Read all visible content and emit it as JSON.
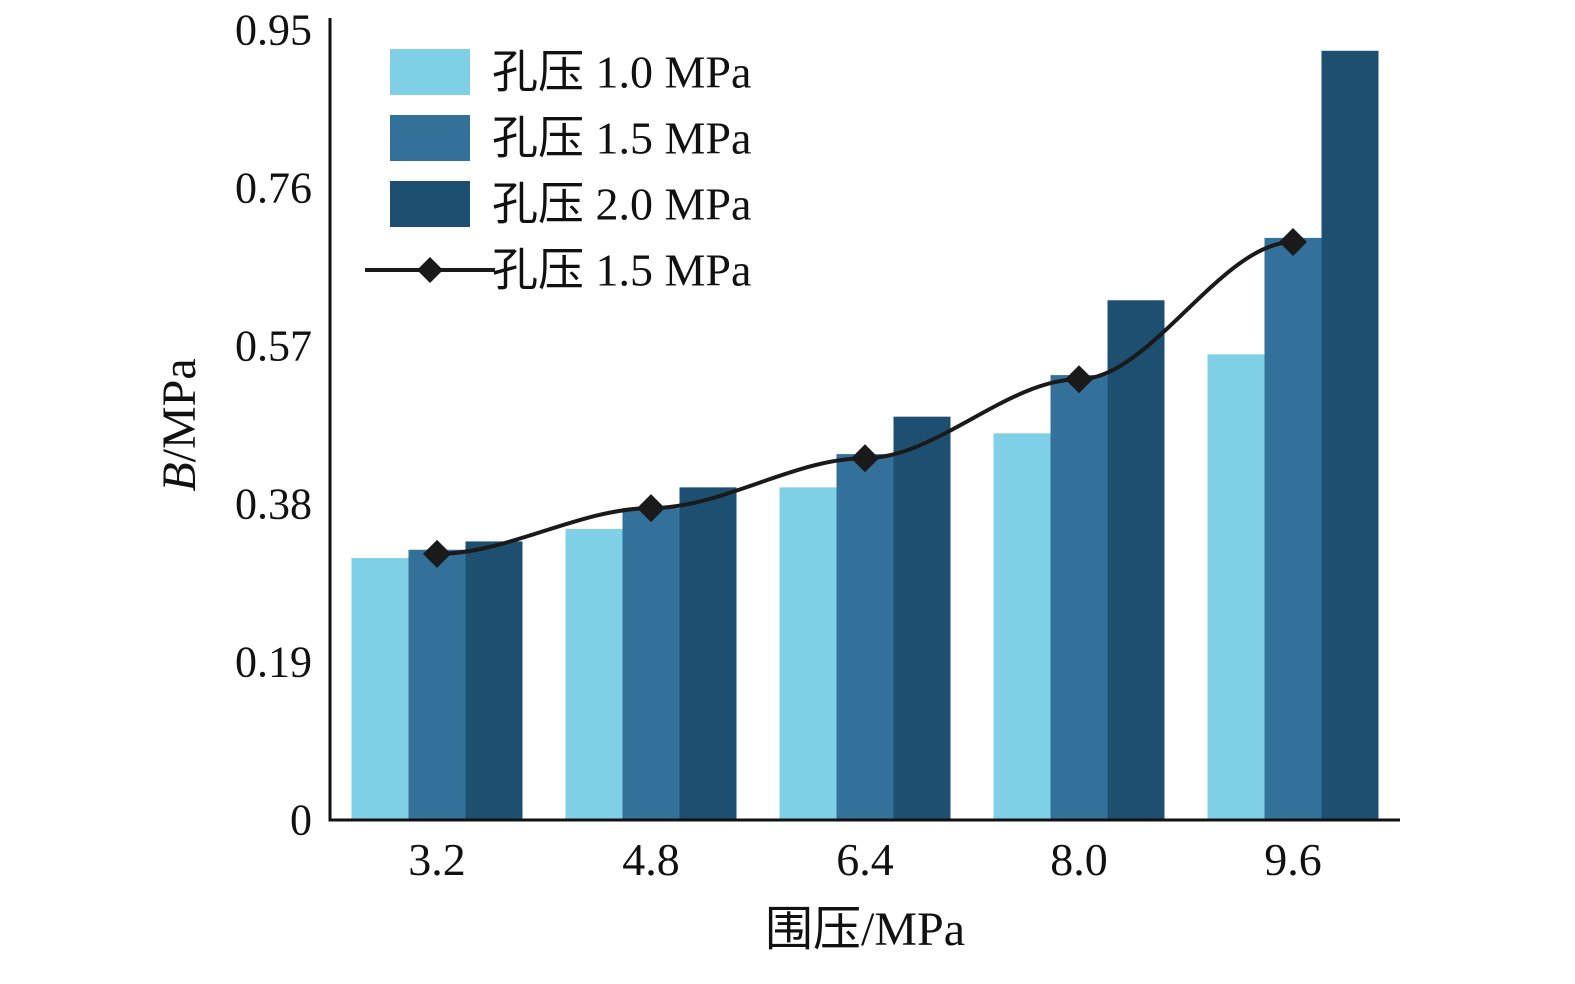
{
  "chart_data": {
    "type": "bar",
    "categories": [
      "3.2",
      "4.8",
      "6.4",
      "8.0",
      "9.6"
    ],
    "series": [
      {
        "name": "孔压 1.0 MPa",
        "kind": "bar",
        "color": "#7fd0e6",
        "values": [
          0.315,
          0.35,
          0.4,
          0.465,
          0.56
        ]
      },
      {
        "name": "孔压 1.5 MPa",
        "kind": "bar",
        "color": "#33719b",
        "values": [
          0.325,
          0.375,
          0.44,
          0.535,
          0.7
        ]
      },
      {
        "name": "孔压 2.0 MPa",
        "kind": "bar",
        "color": "#1d4f70",
        "values": [
          0.335,
          0.4,
          0.485,
          0.625,
          0.925
        ]
      },
      {
        "name": "孔压 1.5 MPa",
        "kind": "line",
        "color": "#1a1a1a",
        "values": [
          0.32,
          0.375,
          0.435,
          0.53,
          0.695
        ]
      }
    ],
    "title": "",
    "xlabel": "围压/MPa",
    "ylabel": "B/MPa",
    "ylim": [
      0,
      0.95
    ],
    "yticks": [
      0,
      0.19,
      0.38,
      0.57,
      0.76,
      0.95
    ],
    "ytick_labels": [
      "0",
      "0.19",
      "0.38",
      "0.57",
      "0.76",
      "0.95"
    ],
    "grid": false,
    "legend_position": "top-left",
    "axis_color": "#111111",
    "marker": "diamond"
  }
}
